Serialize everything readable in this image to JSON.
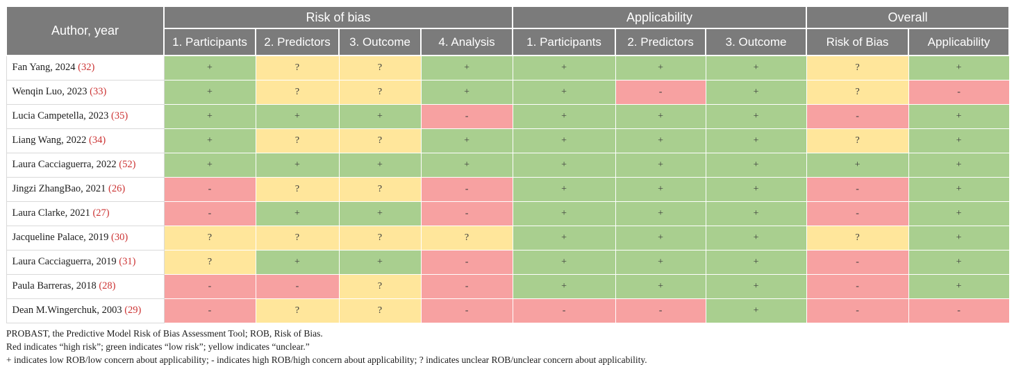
{
  "table": {
    "author_header": "Author, year",
    "groups": [
      {
        "label": "Risk of bias",
        "columns": [
          "1. Participants",
          "2. Predictors",
          "3. Outcome",
          "4. Analysis"
        ]
      },
      {
        "label": "Applicability",
        "columns": [
          "1. Participants",
          "2. Predictors",
          "3. Outcome"
        ]
      },
      {
        "label": "Overall",
        "columns": [
          "Risk of Bias",
          "Applicability"
        ]
      }
    ],
    "rows": [
      {
        "author": "Fan Yang, 2024",
        "ref": "32",
        "values": [
          "+",
          "?",
          "?",
          "+",
          "+",
          "+",
          "+",
          "?",
          "+"
        ]
      },
      {
        "author": "Wenqin Luo, 2023",
        "ref": "33",
        "values": [
          "+",
          "?",
          "?",
          "+",
          "+",
          "-",
          "+",
          "?",
          "-"
        ]
      },
      {
        "author": "Lucia Campetella, 2023",
        "ref": "35",
        "values": [
          "+",
          "+",
          "+",
          "-",
          "+",
          "+",
          "+",
          "-",
          "+"
        ]
      },
      {
        "author": "Liang Wang, 2022",
        "ref": "34",
        "values": [
          "+",
          "?",
          "?",
          "+",
          "+",
          "+",
          "+",
          "?",
          "+"
        ]
      },
      {
        "author": "Laura Cacciaguerra, 2022",
        "ref": "52",
        "values": [
          "+",
          "+",
          "+",
          "+",
          "+",
          "+",
          "+",
          "+",
          "+"
        ]
      },
      {
        "author": "Jingzi ZhangBao, 2021",
        "ref": "26",
        "values": [
          "-",
          "?",
          "?",
          "-",
          "+",
          "+",
          "+",
          "-",
          "+"
        ]
      },
      {
        "author": "Laura Clarke, 2021",
        "ref": "27",
        "values": [
          "-",
          "+",
          "+",
          "-",
          "+",
          "+",
          "+",
          "-",
          "+"
        ]
      },
      {
        "author": "Jacqueline Palace, 2019",
        "ref": "30",
        "values": [
          "?",
          "?",
          "?",
          "?",
          "+",
          "+",
          "+",
          "?",
          "+"
        ]
      },
      {
        "author": "Laura Cacciaguerra, 2019",
        "ref": "31",
        "values": [
          "?",
          "+",
          "+",
          "-",
          "+",
          "+",
          "+",
          "-",
          "+"
        ]
      },
      {
        "author": "Paula Barreras, 2018",
        "ref": "28",
        "values": [
          "-",
          "-",
          "?",
          "-",
          "+",
          "+",
          "+",
          "-",
          "+"
        ]
      },
      {
        "author": "Dean M.Wingerchuk, 2003",
        "ref": "29",
        "values": [
          "-",
          "?",
          "?",
          "-",
          "-",
          "-",
          "+",
          "-",
          "-"
        ]
      }
    ]
  },
  "legend": {
    "symbol_meanings": {
      "+": "low risk / low concern",
      "-": "high risk / high concern",
      "?": "unclear"
    },
    "symbol_colors": {
      "+": "#a9cf8f",
      "-": "#f7a1a1",
      "?": "#ffe69b"
    }
  },
  "colors": {
    "header_bg": "#7b7b7b",
    "header_text": "#ffffff",
    "green": "#a9cf8f",
    "yellow": "#ffe69b",
    "red": "#f7a1a1",
    "reference_red": "#cc3333"
  },
  "footnotes": [
    "PROBAST, the Predictive Model Risk of Bias Assessment Tool; ROB, Risk of Bias.",
    "Red indicates “high risk”; green indicates “low risk”; yellow indicates “unclear.”",
    "+ indicates low ROB/low concern about applicability; - indicates high ROB/high concern about applicability; ? indicates unclear ROB/unclear concern about applicability."
  ]
}
